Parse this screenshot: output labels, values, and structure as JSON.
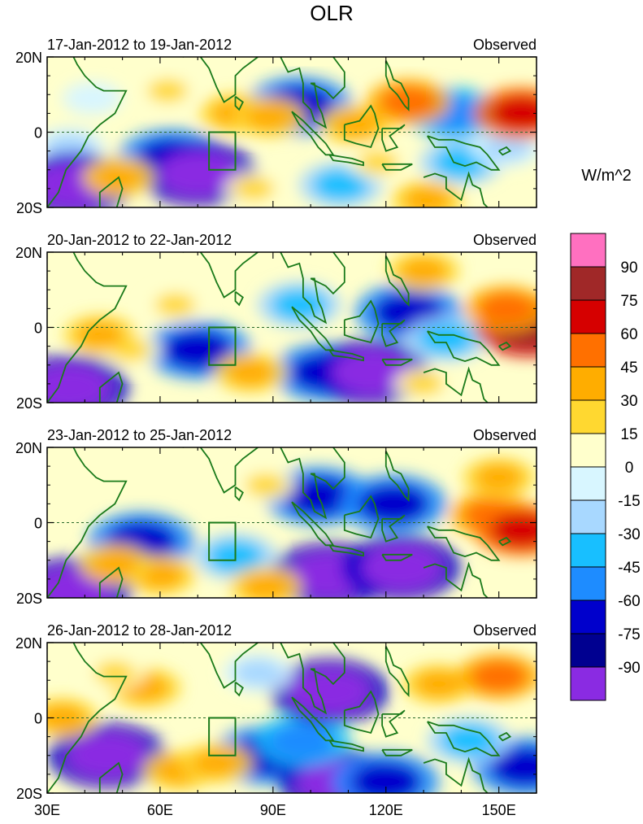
{
  "chart_data": {
    "type": "heatmap",
    "title": "OLR",
    "units_label": "W/m^2",
    "colorbar": {
      "tick_labels": [
        "90",
        "75",
        "60",
        "45",
        "30",
        "15",
        "0",
        "-15",
        "-30",
        "-45",
        "-60",
        "-75",
        "-90"
      ],
      "colors": [
        "#ff70c0",
        "#a02828",
        "#d60000",
        "#ff7000",
        "#ffad00",
        "#ffd830",
        "#ffffcc",
        "#d8f6ff",
        "#a8d8ff",
        "#18bfff",
        "#1e8cff",
        "#0000cc",
        "#000090",
        "#8a2be2"
      ]
    },
    "xaxis": {
      "range": [
        30,
        160
      ],
      "ticks": [
        30,
        60,
        90,
        120,
        150
      ],
      "tick_labels": [
        "30E",
        "60E",
        "90E",
        "120E",
        "150E"
      ]
    },
    "yaxis": {
      "range": [
        -20,
        20
      ],
      "ticks": [
        20,
        0,
        -20
      ],
      "tick_labels": [
        "20N",
        "0",
        "20S"
      ]
    },
    "marker_box": {
      "lon": [
        73,
        80
      ],
      "lat": [
        -10,
        0
      ]
    },
    "panels": [
      {
        "period": "17-Jan-2012 to 19-Jan-2012",
        "label": "Observed",
        "anomalies": [
          {
            "lon": 36,
            "lat": -4,
            "value": -30
          },
          {
            "lon": 37,
            "lat": -14,
            "value": -90
          },
          {
            "lon": 63,
            "lat": -7,
            "value": -75
          },
          {
            "lon": 70,
            "lat": -11,
            "value": -90
          },
          {
            "lon": 97,
            "lat": 7,
            "value": -75
          },
          {
            "lon": 108,
            "lat": -14,
            "value": -45
          },
          {
            "lon": 138,
            "lat": 5,
            "value": -60
          },
          {
            "lon": 140,
            "lat": -8,
            "value": -45
          },
          {
            "lon": 152,
            "lat": -4,
            "value": -30
          },
          {
            "lon": 42,
            "lat": 9,
            "value": -15
          },
          {
            "lon": 80,
            "lat": 5,
            "value": 30
          },
          {
            "lon": 89,
            "lat": 4,
            "value": 30
          },
          {
            "lon": 62,
            "lat": 11,
            "value": 15
          },
          {
            "lon": 49,
            "lat": -12,
            "value": 30
          },
          {
            "lon": 85,
            "lat": -15,
            "value": 15
          },
          {
            "lon": 112,
            "lat": 2,
            "value": 30
          },
          {
            "lon": 126,
            "lat": 8,
            "value": 45
          },
          {
            "lon": 156,
            "lat": 5,
            "value": 60
          },
          {
            "lon": 131,
            "lat": -18,
            "value": 30
          },
          {
            "lon": 118,
            "lat": -8,
            "value": 15
          }
        ]
      },
      {
        "period": "20-Jan-2012 to 22-Jan-2012",
        "label": "Observed",
        "anomalies": [
          {
            "lon": 36,
            "lat": -16,
            "value": -90
          },
          {
            "lon": 70,
            "lat": -6,
            "value": -75
          },
          {
            "lon": 104,
            "lat": -12,
            "value": -75
          },
          {
            "lon": 116,
            "lat": -12,
            "value": -90
          },
          {
            "lon": 97,
            "lat": 6,
            "value": -45
          },
          {
            "lon": 126,
            "lat": 4,
            "value": -75
          },
          {
            "lon": 136,
            "lat": -3,
            "value": -45
          },
          {
            "lon": 52,
            "lat": -6,
            "value": 15
          },
          {
            "lon": 84,
            "lat": -12,
            "value": 30
          },
          {
            "lon": 44,
            "lat": -2,
            "value": 30
          },
          {
            "lon": 64,
            "lat": 6,
            "value": 15
          },
          {
            "lon": 130,
            "lat": 15,
            "value": 30
          },
          {
            "lon": 158,
            "lat": 0,
            "value": 75
          },
          {
            "lon": 152,
            "lat": 5,
            "value": 45
          },
          {
            "lon": 130,
            "lat": -15,
            "value": 15
          }
        ]
      },
      {
        "period": "23-Jan-2012 to 25-Jan-2012",
        "label": "Observed",
        "anomalies": [
          {
            "lon": 37,
            "lat": -18,
            "value": -90
          },
          {
            "lon": 55,
            "lat": -5,
            "value": -75
          },
          {
            "lon": 105,
            "lat": -14,
            "value": -90
          },
          {
            "lon": 124,
            "lat": -12,
            "value": -90
          },
          {
            "lon": 102,
            "lat": 7,
            "value": -75
          },
          {
            "lon": 122,
            "lat": 5,
            "value": -75
          },
          {
            "lon": 80,
            "lat": -9,
            "value": -45
          },
          {
            "lon": 60,
            "lat": -14,
            "value": 30
          },
          {
            "lon": 48,
            "lat": -11,
            "value": 30
          },
          {
            "lon": 88,
            "lat": 10,
            "value": 15
          },
          {
            "lon": 148,
            "lat": 2,
            "value": 45
          },
          {
            "lon": 156,
            "lat": -2,
            "value": 60
          },
          {
            "lon": 150,
            "lat": 12,
            "value": 30
          },
          {
            "lon": 88,
            "lat": -17,
            "value": 30
          }
        ]
      },
      {
        "period": "26-Jan-2012 to 28-Jan-2012",
        "label": "Observed",
        "anomalies": [
          {
            "lon": 46,
            "lat": -10,
            "value": -90
          },
          {
            "lon": 88,
            "lat": -10,
            "value": -75
          },
          {
            "lon": 107,
            "lat": -17,
            "value": -90
          },
          {
            "lon": 98,
            "lat": -6,
            "value": -60
          },
          {
            "lon": 120,
            "lat": -17,
            "value": -75
          },
          {
            "lon": 105,
            "lat": 7,
            "value": -90
          },
          {
            "lon": 157,
            "lat": -13,
            "value": -75
          },
          {
            "lon": 142,
            "lat": -6,
            "value": -45
          },
          {
            "lon": 65,
            "lat": -14,
            "value": 30
          },
          {
            "lon": 75,
            "lat": -12,
            "value": 30
          },
          {
            "lon": 56,
            "lat": 8,
            "value": 30
          },
          {
            "lon": 48,
            "lat": 12,
            "value": 15
          },
          {
            "lon": 134,
            "lat": 9,
            "value": 30
          },
          {
            "lon": 150,
            "lat": 11,
            "value": 45
          },
          {
            "lon": 34,
            "lat": 0,
            "value": 30
          },
          {
            "lon": 86,
            "lat": 12,
            "value": -30
          }
        ]
      }
    ]
  }
}
